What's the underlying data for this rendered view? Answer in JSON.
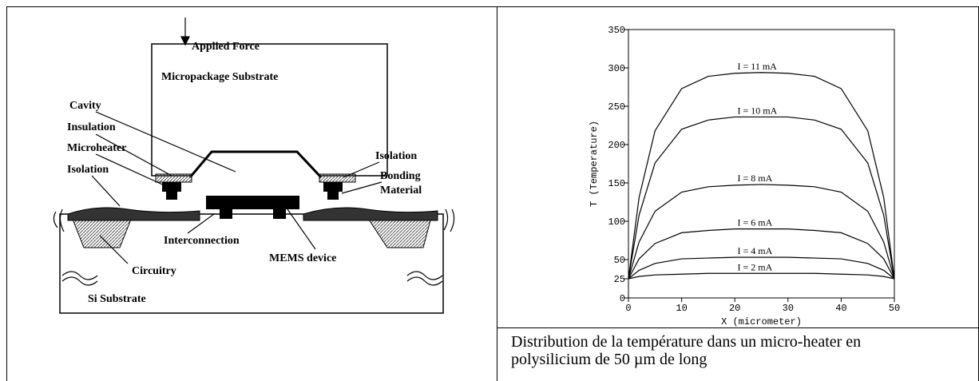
{
  "diagram": {
    "labels": [
      "Applied Force",
      "Micropackage Substrate",
      "Cavity",
      "Insulation",
      "Microheater",
      "Isolation",
      "Isolation",
      "Bonding",
      "Material",
      "Interconnection",
      "MEMS device",
      "Circuitry",
      "Si Substrate"
    ]
  },
  "chart_data": {
    "type": "line",
    "xlabel": "X (micrometer)",
    "ylabel": "T (Temperature)",
    "x": [
      0,
      2,
      5,
      10,
      15,
      20,
      25,
      30,
      35,
      40,
      45,
      48,
      50
    ],
    "xlim": [
      0,
      50
    ],
    "xticks": [
      0,
      10,
      20,
      30,
      40,
      50
    ],
    "ylim": [
      0,
      350
    ],
    "yticks": [
      0,
      25,
      50,
      100,
      150,
      200,
      250,
      300,
      350
    ],
    "series": [
      {
        "name": "I = 11 mA",
        "color": "#000000",
        "values": [
          25,
          131,
          218,
          273,
          289,
          293,
          294,
          293,
          289,
          273,
          218,
          131,
          25
        ]
      },
      {
        "name": "I = 10 mA",
        "color": "#000000",
        "values": [
          25,
          108,
          176,
          220,
          232,
          236,
          236,
          236,
          232,
          220,
          176,
          108,
          25
        ]
      },
      {
        "name": "I = 8 mA",
        "color": "#000000",
        "values": [
          25,
          73,
          113,
          138,
          145,
          147,
          148,
          147,
          145,
          138,
          113,
          73,
          25
        ]
      },
      {
        "name": "I = 6 mA",
        "color": "#000000",
        "values": [
          25,
          51,
          71,
          85,
          88,
          90,
          90,
          90,
          88,
          85,
          71,
          51,
          25
        ]
      },
      {
        "name": "I = 4 mA",
        "color": "#000000",
        "values": [
          25,
          36,
          45,
          51,
          52,
          53,
          53,
          53,
          52,
          51,
          45,
          36,
          25
        ]
      },
      {
        "name": "I = 2 mA",
        "color": "#000000",
        "values": [
          25,
          28,
          30,
          31,
          32,
          32,
          32,
          32,
          32,
          31,
          30,
          28,
          25
        ]
      }
    ]
  },
  "caption": [
    "Distribution de la température dans un micro-heater en",
    "polysilicium de 50 µm de long"
  ]
}
